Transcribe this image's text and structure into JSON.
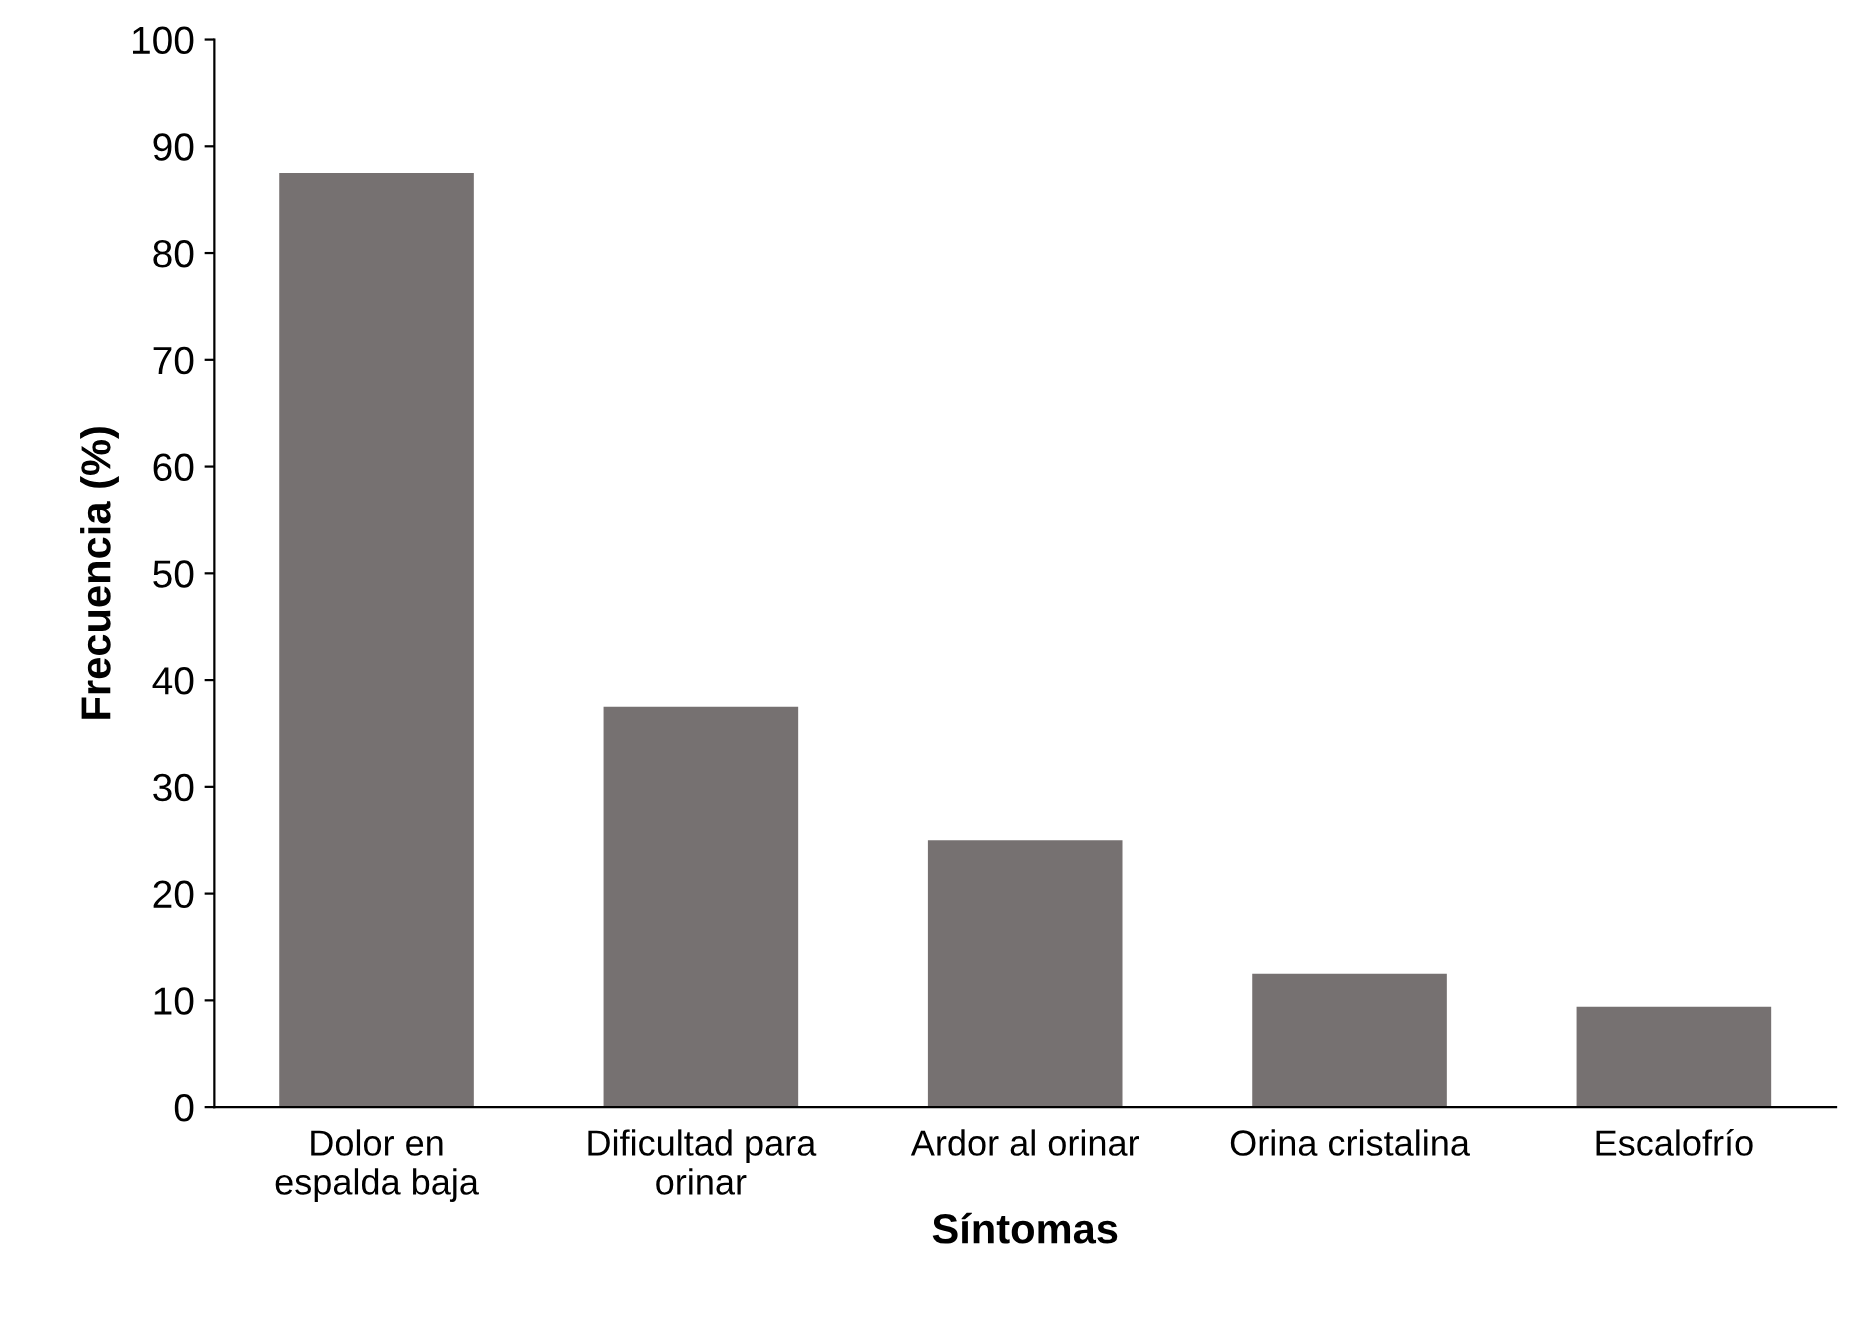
{
  "chart_data": {
    "type": "bar",
    "xlabel": "Síntomas",
    "ylabel": "Frecuencia (%)",
    "categories": [
      "Dolor en\nespalda baja",
      "Dificultad para\norinar",
      "Ardor al orinar",
      "Orina cristalina",
      "Escalofrío"
    ],
    "values": [
      87.5,
      37.5,
      25,
      12.5,
      9.4
    ],
    "color": "#767171",
    "ylim": [
      0,
      100
    ],
    "yticks": [
      0,
      10,
      20,
      30,
      40,
      50,
      60,
      70,
      80,
      90,
      100
    ],
    "grid": false
  }
}
